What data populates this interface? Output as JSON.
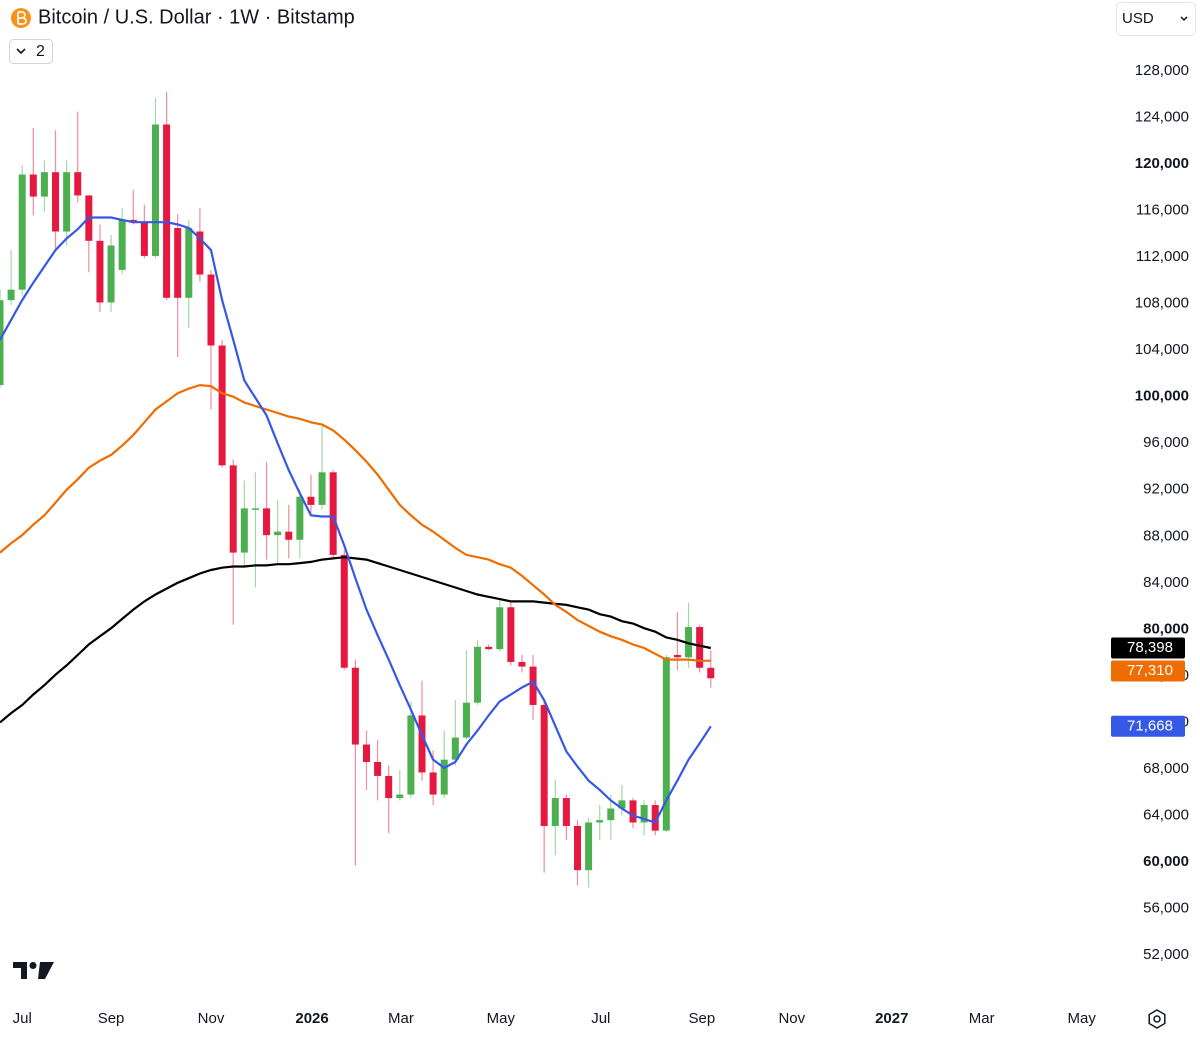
{
  "chart_data": {
    "type": "candlestick",
    "title": "Bitcoin / U.S. Dollar · 1W · Bitstamp",
    "indicator_count": "2",
    "currency": "USD",
    "up_color": "#4caf50",
    "down_color": "#e5193f",
    "x": [
      0,
      1,
      2,
      3,
      4,
      5,
      6,
      7,
      8,
      9,
      10,
      11,
      12,
      13,
      14,
      15,
      16,
      17,
      18,
      19,
      20,
      21,
      22,
      23,
      24,
      25,
      26,
      27,
      28,
      29,
      30,
      31,
      32,
      33,
      34,
      35,
      36,
      37,
      38,
      39,
      40,
      41,
      42,
      43,
      44,
      45,
      46,
      47,
      48,
      49,
      50,
      51,
      52,
      53,
      54,
      55,
      56,
      57,
      58,
      59,
      60,
      61,
      62,
      63,
      64
    ],
    "open": [
      101000,
      108300,
      109200,
      119100,
      117200,
      119300,
      114200,
      119300,
      117300,
      113400,
      108100,
      110900,
      115200,
      115000,
      112100,
      123400,
      114500,
      108500,
      114200,
      110500,
      104400,
      94100,
      86600,
      90300,
      90400,
      88100,
      88400,
      87700,
      91400,
      90700,
      93500,
      86400,
      76700,
      70100,
      68600,
      67400,
      65500,
      65800,
      72600,
      67700,
      65800,
      68800,
      70700,
      73700,
      78500,
      78300,
      81900,
      77200,
      76800,
      73500,
      63100,
      65500,
      63100,
      59300,
      63400,
      63600,
      64600,
      65300,
      63400,
      64900,
      62700,
      77800,
      77600,
      80200,
      76700
    ],
    "high": [
      109200,
      112600,
      119900,
      123100,
      120300,
      122900,
      120300,
      124500,
      117300,
      114800,
      113900,
      116200,
      117800,
      116500,
      125700,
      126200,
      115700,
      115200,
      116200,
      110900,
      104900,
      94600,
      92800,
      93500,
      94400,
      91100,
      90700,
      92000,
      93300,
      97600,
      93700,
      86800,
      77400,
      71300,
      70500,
      68300,
      67900,
      73800,
      75600,
      69600,
      71300,
      73900,
      78200,
      79100,
      78700,
      82500,
      82300,
      77800,
      77800,
      73900,
      67100,
      65800,
      63600,
      63800,
      64900,
      65800,
      66600,
      65500,
      65300,
      65300,
      77800,
      81500,
      82300,
      80400,
      78200
    ],
    "low": [
      100800,
      107900,
      108700,
      115600,
      115900,
      112600,
      113000,
      116700,
      110700,
      107300,
      107300,
      110500,
      114800,
      111900,
      111900,
      108300,
      103400,
      105900,
      109900,
      98900,
      93900,
      80400,
      85300,
      83600,
      86000,
      85500,
      86100,
      86100,
      89800,
      90300,
      86200,
      76500,
      59700,
      66200,
      65300,
      62500,
      65300,
      65500,
      67000,
      64900,
      65500,
      68300,
      70500,
      73500,
      78200,
      78100,
      76900,
      76300,
      72200,
      59100,
      60600,
      61900,
      58000,
      57800,
      61900,
      61900,
      64000,
      62900,
      62300,
      62300,
      62600,
      76500,
      76700,
      76300,
      75000
    ],
    "close": [
      108300,
      109200,
      119100,
      117200,
      119300,
      114200,
      119300,
      117300,
      113400,
      108100,
      113000,
      115200,
      115000,
      112100,
      123400,
      108500,
      108500,
      114500,
      110500,
      104400,
      94100,
      86600,
      90400,
      90400,
      88100,
      88400,
      87700,
      91400,
      90700,
      93500,
      86400,
      76700,
      70100,
      68600,
      67400,
      65500,
      65800,
      72600,
      67700,
      65800,
      68800,
      70700,
      73700,
      78500,
      78300,
      81900,
      77200,
      76800,
      73500,
      63100,
      65500,
      63100,
      59300,
      63400,
      63600,
      64600,
      65300,
      63400,
      64900,
      62700,
      77600,
      77600,
      80200,
      76700,
      75800
    ],
    "lines": [
      {
        "color": "#000000",
        "label_text_color": "#ffffff",
        "last_label": "78,398",
        "values": [
          72000,
          72800,
          73500,
          74400,
          75200,
          76100,
          76900,
          77800,
          78700,
          79400,
          80100,
          80900,
          81700,
          82400,
          83000,
          83500,
          84000,
          84400,
          84800,
          85100,
          85300,
          85400,
          85400,
          85500,
          85500,
          85600,
          85600,
          85700,
          85800,
          86000,
          86100,
          86200,
          86100,
          86000,
          85700,
          85400,
          85100,
          84800,
          84500,
          84200,
          83900,
          83600,
          83300,
          83000,
          82800,
          82600,
          82400,
          82400,
          82400,
          82300,
          82200,
          82100,
          81900,
          81700,
          81300,
          81100,
          80700,
          80500,
          80100,
          79800,
          79300,
          79100,
          78800,
          78600,
          78398
        ]
      },
      {
        "color": "#ef6c00",
        "label_text_color": "#ffffff",
        "last_label": "77,310",
        "values": [
          86600,
          87400,
          88100,
          89000,
          89800,
          90900,
          92000,
          92900,
          93900,
          94500,
          95000,
          95800,
          96700,
          97800,
          98900,
          99600,
          100300,
          100700,
          101000,
          100900,
          100300,
          100000,
          99500,
          99200,
          98900,
          98600,
          98300,
          98100,
          97800,
          97600,
          97100,
          96300,
          95400,
          94400,
          93300,
          92000,
          90700,
          89800,
          89000,
          88400,
          87700,
          87000,
          86400,
          86200,
          86000,
          85600,
          85300,
          84600,
          83800,
          83000,
          82100,
          81500,
          80800,
          80300,
          79800,
          79400,
          79100,
          78700,
          78400,
          77900,
          77400,
          77400,
          77400,
          77300,
          77310
        ]
      },
      {
        "color": "#3558e6",
        "label_text_color": "#ffffff",
        "last_label": "71,668",
        "values": [
          104900,
          106600,
          108300,
          109800,
          111200,
          112600,
          113600,
          114400,
          115400,
          115400,
          115400,
          115200,
          115000,
          115000,
          115000,
          115000,
          114800,
          114500,
          113600,
          112600,
          108300,
          104900,
          101400,
          99900,
          98400,
          96000,
          93700,
          91700,
          89800,
          89700,
          89700,
          87200,
          84400,
          81700,
          79500,
          77400,
          75200,
          73100,
          70900,
          68800,
          68100,
          68600,
          70100,
          71300,
          72600,
          73800,
          74400,
          75000,
          75500,
          73900,
          71700,
          69500,
          68200,
          67000,
          66200,
          65300,
          64600,
          64000,
          63700,
          63400,
          65300,
          67000,
          68800,
          70200,
          71668
        ]
      }
    ],
    "xlim": [
      0,
      99.5
    ],
    "xticks": [
      {
        "value": 2.0,
        "label": "Jul"
      },
      {
        "value": 10.0,
        "label": "Sep"
      },
      {
        "value": 19.0,
        "label": "Nov"
      },
      {
        "value": 28.1,
        "label": "2026"
      },
      {
        "value": 36.1,
        "label": "Mar"
      },
      {
        "value": 45.1,
        "label": "May"
      },
      {
        "value": 54.1,
        "label": "Jul"
      },
      {
        "value": 63.2,
        "label": "Sep"
      },
      {
        "value": 71.3,
        "label": "Nov"
      },
      {
        "value": 80.3,
        "label": "2027"
      },
      {
        "value": 88.4,
        "label": "Mar"
      },
      {
        "value": 97.4,
        "label": "May"
      }
    ],
    "ylim": [
      48570,
      134100
    ],
    "yticks": [
      {
        "value": 52000,
        "label": "52,000"
      },
      {
        "value": 56000,
        "label": "56,000"
      },
      {
        "value": 60000,
        "label": "60,000"
      },
      {
        "value": 64000,
        "label": "64,000"
      },
      {
        "value": 68000,
        "label": "68,000"
      },
      {
        "value": 72000,
        "label": "72,000"
      },
      {
        "value": 76000,
        "label": "76,000"
      },
      {
        "value": 80000,
        "label": "80,000"
      },
      {
        "value": 84000,
        "label": "84,000"
      },
      {
        "value": 88000,
        "label": "88,000"
      },
      {
        "value": 92000,
        "label": "92,000"
      },
      {
        "value": 96000,
        "label": "96,000"
      },
      {
        "value": 100000,
        "label": "100,000"
      },
      {
        "value": 104000,
        "label": "104,000"
      },
      {
        "value": 108000,
        "label": "108,000"
      },
      {
        "value": 112000,
        "label": "112,000"
      },
      {
        "value": 116000,
        "label": "116,000"
      },
      {
        "value": 120000,
        "label": "120,000"
      },
      {
        "value": 124000,
        "label": "124,000"
      },
      {
        "value": 128000,
        "label": "128,000"
      }
    ],
    "grid": false
  }
}
